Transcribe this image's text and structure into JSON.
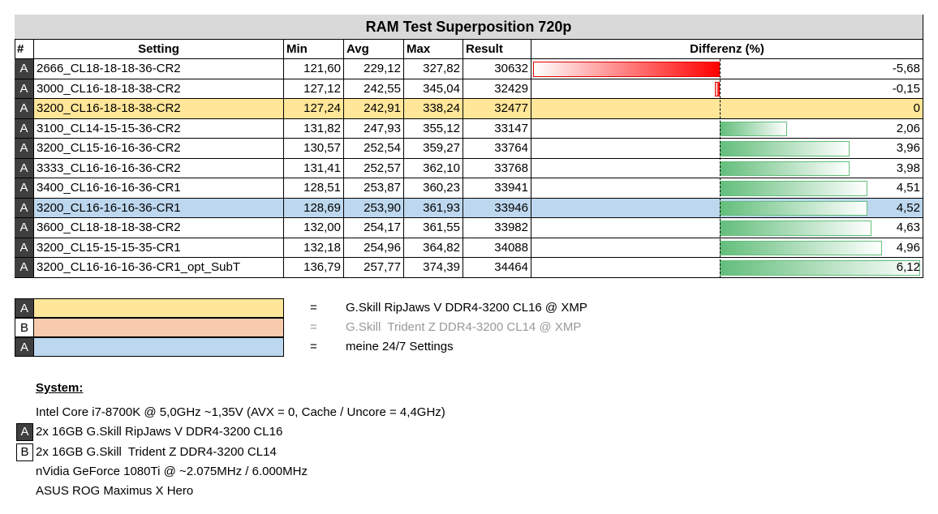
{
  "table": {
    "title": "RAM Test Superposition 720p",
    "headers": [
      "#",
      "Setting",
      "Min",
      "Avg",
      "Max",
      "Result",
      "Differenz (%)"
    ],
    "rows": [
      {
        "tag": "A",
        "setting": "2666_CL18-18-18-36-CR2",
        "min": "121,60",
        "avg": "229,12",
        "max": "327,82",
        "result": "30632",
        "diff": {
          "value": -5.68,
          "label": "-5,68"
        }
      },
      {
        "tag": "A",
        "setting": "3000_CL16-18-18-38-CR2",
        "min": "127,12",
        "avg": "242,55",
        "max": "345,04",
        "result": "32429",
        "diff": {
          "value": -0.15,
          "label": "-0,15"
        }
      },
      {
        "tag": "A",
        "setting": "3200_CL16-18-18-38-CR2",
        "min": "127,24",
        "avg": "242,91",
        "max": "338,24",
        "result": "32477",
        "diff": {
          "value": 0,
          "label": "0"
        },
        "fill": "#ffe699"
      },
      {
        "tag": "A",
        "setting": "3100_CL14-15-15-36-CR2",
        "min": "131,82",
        "avg": "247,93",
        "max": "355,12",
        "result": "33147",
        "diff": {
          "value": 2.06,
          "label": "2,06"
        }
      },
      {
        "tag": "A",
        "setting": "3200_CL15-16-16-36-CR2",
        "min": "130,57",
        "avg": "252,54",
        "max": "359,27",
        "result": "33764",
        "diff": {
          "value": 3.96,
          "label": "3,96"
        }
      },
      {
        "tag": "A",
        "setting": "3333_CL16-16-16-36-CR2",
        "min": "131,41",
        "avg": "252,57",
        "max": "362,10",
        "result": "33768",
        "diff": {
          "value": 3.98,
          "label": "3,98"
        }
      },
      {
        "tag": "A",
        "setting": "3400_CL16-16-16-36-CR1",
        "min": "128,51",
        "avg": "253,87",
        "max": "360,23",
        "result": "33941",
        "diff": {
          "value": 4.51,
          "label": "4,51"
        }
      },
      {
        "tag": "A",
        "setting": "3200_CL16-16-16-36-CR1",
        "min": "128,69",
        "avg": "253,90",
        "max": "361,93",
        "result": "33946",
        "diff": {
          "value": 4.52,
          "label": "4,52"
        },
        "fill": "#bdd7ee"
      },
      {
        "tag": "A",
        "setting": "3600_CL18-18-18-38-CR2",
        "min": "132,00",
        "avg": "254,17",
        "max": "361,55",
        "result": "33982",
        "diff": {
          "value": 4.63,
          "label": "4,63"
        }
      },
      {
        "tag": "A",
        "setting": "3200_CL15-15-15-35-CR1",
        "min": "132,18",
        "avg": "254,96",
        "max": "364,82",
        "result": "34088",
        "diff": {
          "value": 4.96,
          "label": "4,96"
        }
      },
      {
        "tag": "A",
        "setting": "3200_CL16-16-16-36-CR1_opt_SubT",
        "min": "136,79",
        "avg": "257,77",
        "max": "374,39",
        "result": "34464",
        "diff": {
          "value": 6.12,
          "label": "6,12"
        }
      }
    ]
  },
  "legend": [
    {
      "tag": "A",
      "color": "#ffe699",
      "sep": "=",
      "text": "G.Skill RipJaws V DDR4-3200 CL16 @ XMP"
    },
    {
      "tag": "B",
      "color": "#f8cbad",
      "sep": "=",
      "text": "G.Skill  Trident Z DDR4-3200 CL14 @ XMP"
    },
    {
      "tag": "A",
      "color": "#bdd7ee",
      "sep": "=",
      "text": "meine 24/7 Settings"
    }
  ],
  "system": {
    "heading": "System:",
    "lines": [
      {
        "text": "Intel Core i7-8700K @ 5,0GHz ~1,35V (AVX = 0, Cache / Uncore = 4,4GHz)"
      },
      {
        "tag": "A",
        "text": "2x 16GB G.Skill RipJaws V DDR4-3200 CL16"
      },
      {
        "tag": "B",
        "text": "2x 16GB G.Skill  Trident Z DDR4-3200 CL14"
      },
      {
        "text": "nVidia GeForce 1080Ti @ ~2.075MHz / 6.000MHz"
      },
      {
        "text": "ASUS ROG Maximus X Hero"
      }
    ]
  }
}
